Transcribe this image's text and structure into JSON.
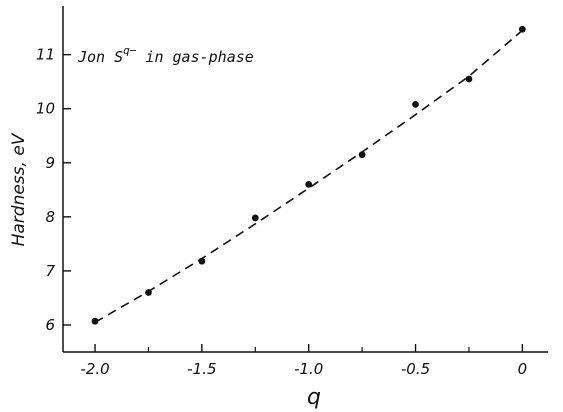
{
  "chart_data": {
    "type": "scatter",
    "title": "",
    "annotation": {
      "text_before": "Jon S",
      "superscript": "q−",
      "text_after": " in gas-phase"
    },
    "xlabel": "q",
    "ylabel": "Hardness, eV",
    "xlim": [
      -2.15,
      0.12
    ],
    "ylim": [
      5.5,
      11.9
    ],
    "x_ticks": [
      -2.0,
      -1.5,
      -1.0,
      -0.5,
      0
    ],
    "x_tick_labels": [
      "-2.0",
      "-1.5",
      "-1.0",
      "-0.5",
      "0"
    ],
    "x_minor_ticks": [
      -1.75,
      -1.25,
      -0.75,
      -0.25
    ],
    "y_ticks": [
      6,
      7,
      8,
      9,
      10,
      11
    ],
    "y_tick_labels": [
      "6",
      "7",
      "8",
      "9",
      "10",
      "11"
    ],
    "grid": false,
    "series": [
      {
        "kind": "points",
        "x": [
          -2.0,
          -1.75,
          -1.5,
          -1.25,
          -1.0,
          -0.75,
          -0.5,
          -0.25,
          0
        ],
        "y": [
          6.07,
          6.6,
          7.18,
          7.98,
          8.6,
          9.15,
          10.08,
          10.55,
          11.47
        ]
      },
      {
        "kind": "fit",
        "style": "dashed",
        "x": [
          -2.0,
          -1.75,
          -1.5,
          -1.25,
          -1.0,
          -0.75,
          -0.5,
          -0.25,
          0
        ],
        "y": [
          6.05,
          6.62,
          7.23,
          7.87,
          8.53,
          9.2,
          9.89,
          10.6,
          11.45
        ]
      }
    ],
    "colors": {
      "ink": "#111111",
      "background": "#ffffff"
    }
  }
}
